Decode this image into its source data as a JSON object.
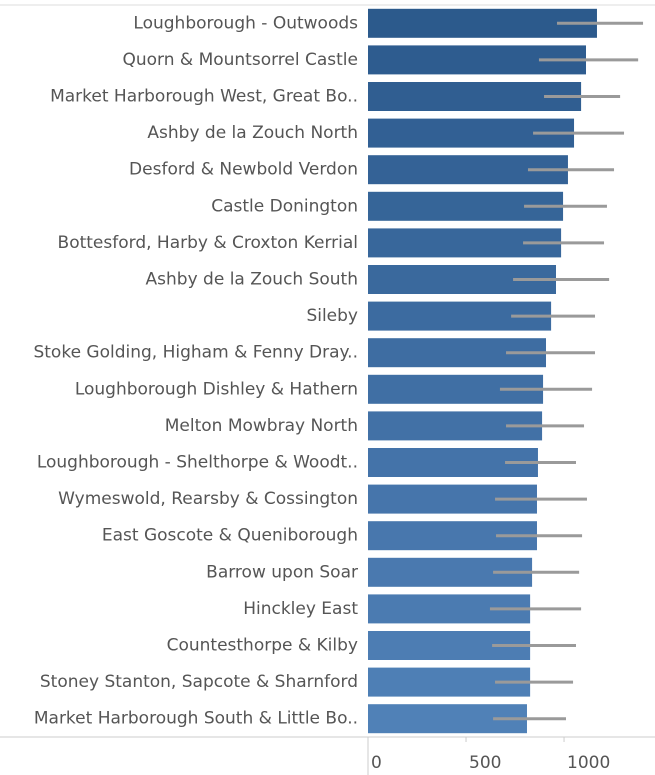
{
  "chart_data": {
    "type": "bar",
    "categories": [
      "Loughborough - Outwoods",
      "Quorn & Mountsorrel Castle",
      "Market Harborough West, Great Bo..",
      "Ashby de la Zouch North",
      "Desford & Newbold Verdon",
      "Castle Donington",
      "Bottesford, Harby & Croxton Kerrial",
      "Ashby de la Zouch South",
      "Sileby",
      "Stoke Golding, Higham & Fenny Dray..",
      "Loughborough Dishley & Hathern",
      "Melton Mowbray North",
      "Loughborough - Shelthorpe & Woodt..",
      "Wymeswold, Rearsby & Cossington",
      "East Goscote & Queniborough",
      "Barrow upon Soar",
      "Hinckley East",
      "Countesthorpe & Kilby",
      "Stoney Stanton, Sapcote & Sharnford",
      "Market Harborough South & Little Bo.."
    ],
    "values": [
      1168,
      1112,
      1087,
      1051,
      1020,
      995,
      985,
      959,
      934,
      908,
      893,
      888,
      867,
      862,
      862,
      837,
      827,
      827,
      827,
      811
    ],
    "low": [
      964,
      872,
      898,
      842,
      816,
      796,
      791,
      740,
      730,
      704,
      673,
      704,
      699,
      648,
      653,
      638,
      622,
      633,
      648,
      638
    ],
    "high": [
      1403,
      1378,
      1286,
      1306,
      1255,
      1219,
      1204,
      1230,
      1158,
      1158,
      1143,
      1102,
      1061,
      1117,
      1092,
      1077,
      1087,
      1061,
      1046,
      1010
    ],
    "colors": [
      "#2c5a8c",
      "#2e5c8f",
      "#305e91",
      "#326094",
      "#346296",
      "#366598",
      "#38679b",
      "#3a699d",
      "#3c6ba0",
      "#3e6da2",
      "#406fa4",
      "#4271a6",
      "#4473a9",
      "#4675ab",
      "#4877ad",
      "#4a79af",
      "#4b7bb1",
      "#4d7db3",
      "#4e7fb5",
      "#5081b7"
    ],
    "error_color": "#9a9a9a",
    "xlim": [
      0,
      1464
    ],
    "xticks": [
      0,
      500,
      1000
    ]
  }
}
